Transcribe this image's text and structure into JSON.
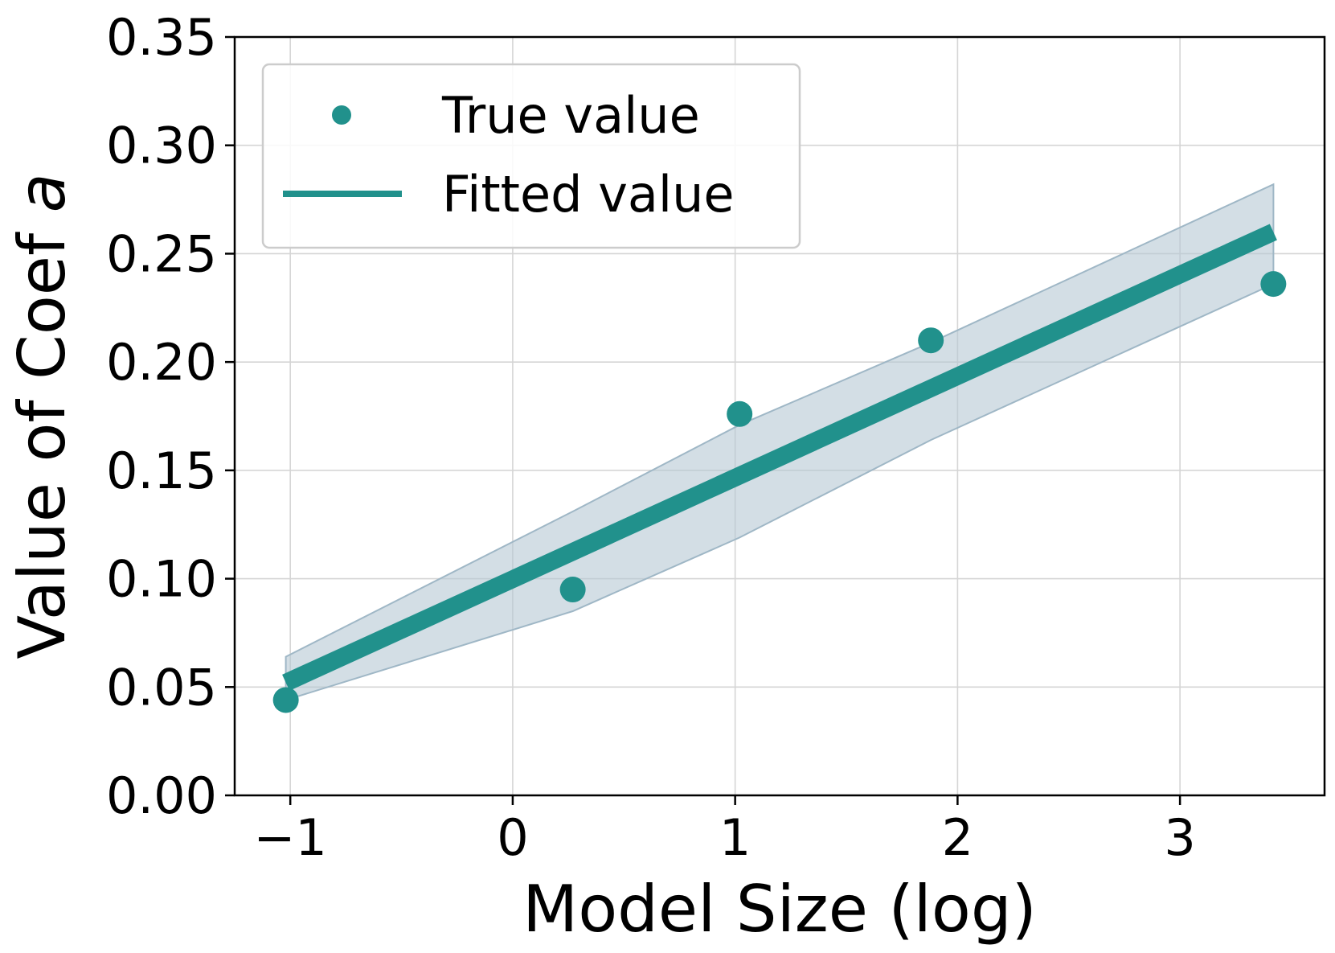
{
  "chart_data": {
    "type": "scatter",
    "title": "",
    "xlabel": "Model Size (log)",
    "ylabel_prefix": "Value of Coef ",
    "ylabel_var": "a",
    "xlim": [
      -1.25,
      3.65
    ],
    "ylim": [
      0.0,
      0.35
    ],
    "xticks": [
      -1,
      0,
      1,
      2,
      3
    ],
    "xtick_labels": [
      "−1",
      "0",
      "1",
      "2",
      "3"
    ],
    "yticks": [
      0.0,
      0.05,
      0.1,
      0.15,
      0.2,
      0.25,
      0.3,
      0.35
    ],
    "ytick_labels": [
      "0.00",
      "0.05",
      "0.10",
      "0.15",
      "0.20",
      "0.25",
      "0.30",
      "0.35"
    ],
    "grid": true,
    "legend_position": "upper-left",
    "series": [
      {
        "name": "True value",
        "kind": "scatter",
        "color": "#21918c",
        "points": [
          {
            "x": -1.02,
            "y": 0.044
          },
          {
            "x": 0.27,
            "y": 0.095
          },
          {
            "x": 1.02,
            "y": 0.176
          },
          {
            "x": 1.88,
            "y": 0.21
          },
          {
            "x": 3.42,
            "y": 0.236
          }
        ]
      },
      {
        "name": "Fitted value",
        "kind": "line",
        "color": "#21918c",
        "points": [
          {
            "x": -1.02,
            "y": 0.052
          },
          {
            "x": 3.42,
            "y": 0.26
          }
        ]
      }
    ],
    "band": {
      "color": "#b6c8d4",
      "x": [
        -1.02,
        0.27,
        1.02,
        1.88,
        3.42
      ],
      "upper": [
        0.064,
        0.131,
        0.171,
        0.209,
        0.282
      ],
      "lower": [
        0.044,
        0.085,
        0.119,
        0.164,
        0.236
      ]
    }
  }
}
